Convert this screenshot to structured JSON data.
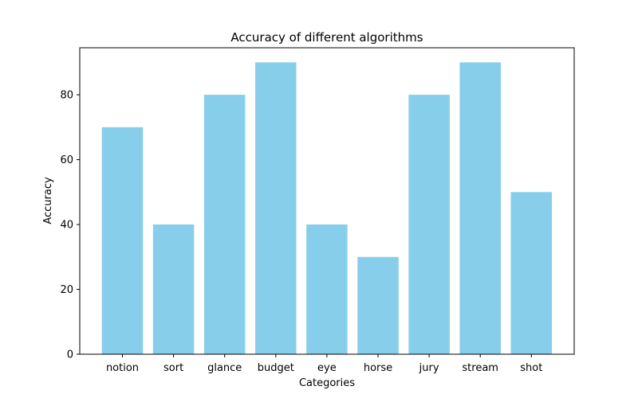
{
  "chart_data": {
    "type": "bar",
    "title": "Accuracy of different algorithms",
    "xlabel": "Categories",
    "ylabel": "Accuracy",
    "categories": [
      "notion",
      "sort",
      "glance",
      "budget",
      "eye",
      "horse",
      "jury",
      "stream",
      "shot"
    ],
    "values": [
      70,
      40,
      80,
      90,
      40,
      30,
      80,
      90,
      50
    ],
    "ylim": [
      0,
      94.5
    ],
    "yticks": [
      0,
      20,
      40,
      60,
      80
    ],
    "bar_color": "#87ceeb",
    "grid": false,
    "legend": "none"
  }
}
